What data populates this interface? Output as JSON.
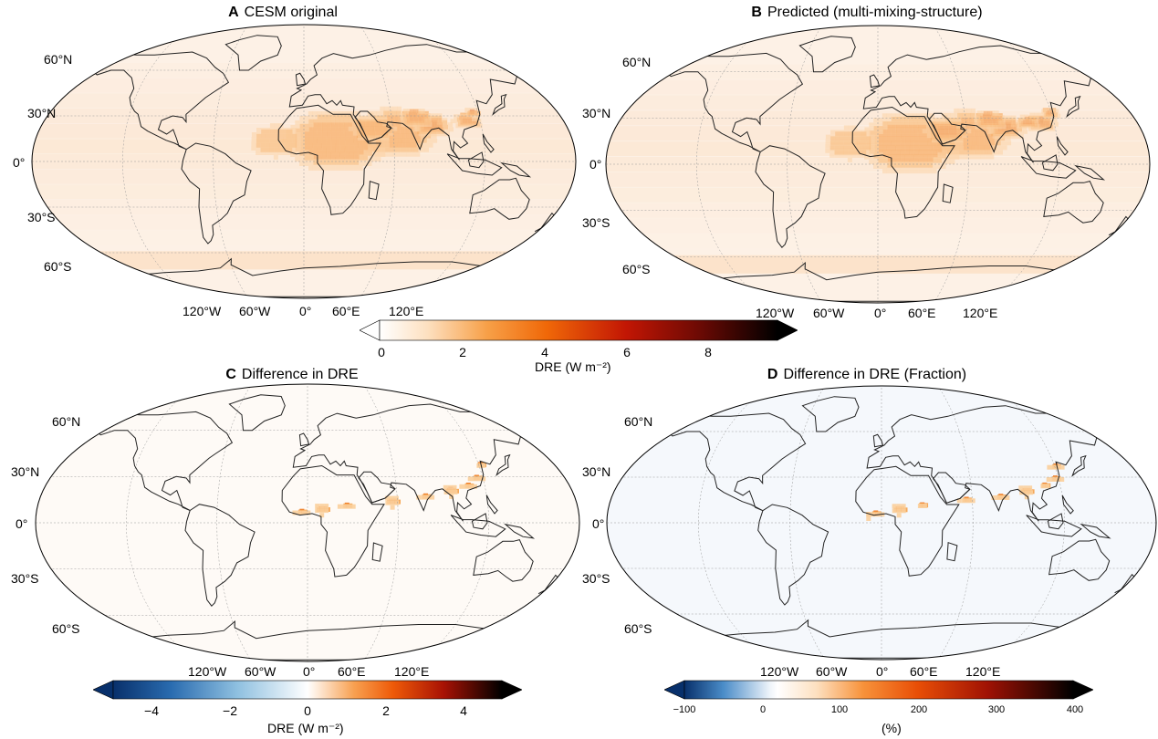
{
  "panels": {
    "a": {
      "letter": "A",
      "title": "CESM original"
    },
    "b": {
      "letter": "B",
      "title": "Predicted (multi-mixing-structure)"
    },
    "c": {
      "letter": "C",
      "title": "Difference in DRE"
    },
    "d": {
      "letter": "D",
      "title": "Difference in DRE (Fraction)"
    }
  },
  "lat_labels": [
    "60°N",
    "30°N",
    "0°",
    "30°S",
    "60°S"
  ],
  "lon_labels": [
    "120°W",
    "60°W",
    "0°",
    "60°E",
    "120°E"
  ],
  "colorbars": {
    "dre": {
      "label": "DRE (W m⁻²)",
      "ticks": [
        "0",
        "2",
        "4",
        "6",
        "8"
      ],
      "range": [
        0,
        9.5
      ],
      "extend": "both",
      "colormap": "white-orange-red-black"
    },
    "diff": {
      "label": "DRE (W m⁻²)",
      "ticks": [
        "−4",
        "−2",
        "0",
        "2",
        "4"
      ],
      "range": [
        -5,
        5
      ],
      "extend": "both",
      "colormap": "blue-white-orange-black"
    },
    "frac": {
      "label": "(%)",
      "ticks": [
        "−100",
        "0",
        "100",
        "200",
        "300",
        "400"
      ],
      "range": [
        -125,
        400
      ],
      "extend": "both",
      "colormap": "blue-white-orange-black"
    }
  },
  "colors": {
    "ocean_bg": "#fdf1e6",
    "ocean_diff": "#fefaf6",
    "ocean_frac": "#f5f8fc",
    "dust_light": "#f7c089",
    "dust_mid": "#f07d1e",
    "dust_high": "#c93b05",
    "dust_max": "#6b0f04"
  }
}
